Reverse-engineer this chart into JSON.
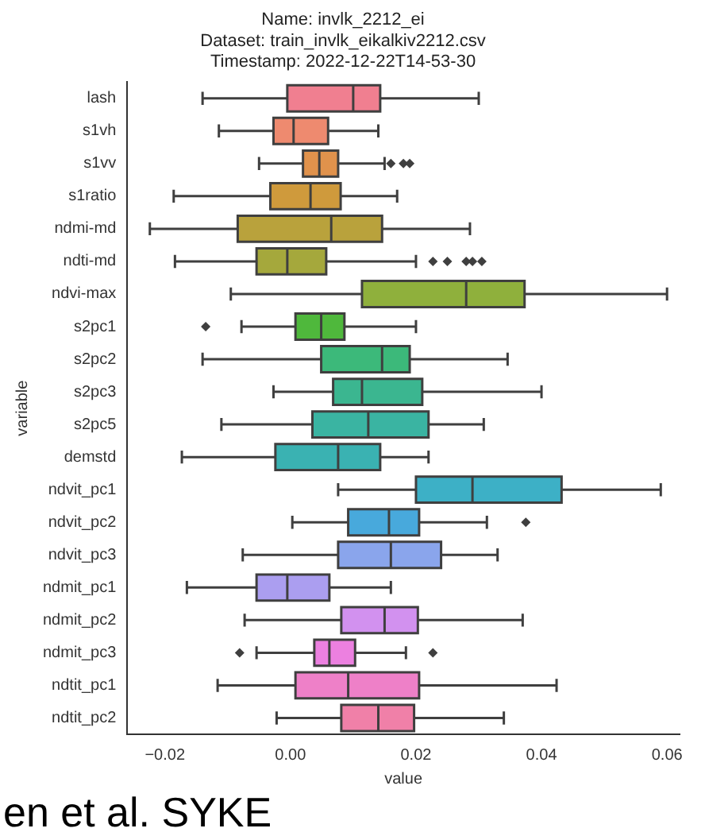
{
  "chart_data": {
    "type": "box",
    "title": "Name: invlk_2212_ei\nDataset: train_invlk_eikalkiv2212.csv\nTimestamp: 2022-12-22T14-53-30",
    "xlabel": "value",
    "ylabel": "variable",
    "orientation": "horizontal",
    "categories": [
      "lash",
      "s1vh",
      "s1vv",
      "s1ratio",
      "ndmi-md",
      "ndti-md",
      "ndvi-max",
      "s2pc1",
      "s2pc2",
      "s2pc3",
      "s2pc5",
      "demstd",
      "ndvit_pc1",
      "ndvit_pc2",
      "ndvit_pc3",
      "ndmit_pc1",
      "ndmit_pc2",
      "ndmit_pc3",
      "ndtit_pc1",
      "ndtit_pc2"
    ],
    "colors": [
      "#f07f90",
      "#ee8a6f",
      "#e0924c",
      "#cf9a3c",
      "#b9a23c",
      "#a5a83c",
      "#8fb03c",
      "#4fb83c",
      "#3cb97a",
      "#3bb690",
      "#3ab4a2",
      "#3ab2b2",
      "#3db0c6",
      "#48a9dc",
      "#8aa5ec",
      "#ab9ef0",
      "#d291ef",
      "#ec80e0",
      "#ee80c8",
      "#f080a8"
    ],
    "boxes": [
      {
        "low": -0.014,
        "q1": -0.0005,
        "median": 0.01,
        "q3": 0.0143,
        "high": 0.03
      },
      {
        "low": -0.0114,
        "q1": -0.0027,
        "median": 0.0005,
        "q3": 0.006,
        "high": 0.014
      },
      {
        "low": -0.005,
        "q1": 0.002,
        "median": 0.0046,
        "q3": 0.0076,
        "high": 0.015,
        "outliers": [
          0.016,
          0.018,
          0.019
        ]
      },
      {
        "low": -0.0186,
        "q1": -0.0032,
        "median": 0.0032,
        "q3": 0.008,
        "high": 0.017
      },
      {
        "low": -0.0224,
        "q1": -0.0084,
        "median": 0.0065,
        "q3": 0.0146,
        "high": 0.0286
      },
      {
        "low": -0.0184,
        "q1": -0.0054,
        "median": -0.0005,
        "q3": 0.0057,
        "high": 0.02,
        "outliers": [
          0.0227,
          0.025,
          0.028,
          0.029,
          0.0305
        ]
      },
      {
        "low": -0.0095,
        "q1": 0.0114,
        "median": 0.028,
        "q3": 0.0373,
        "high": 0.06
      },
      {
        "low": -0.0078,
        "q1": 0.0008,
        "median": 0.0049,
        "q3": 0.0086,
        "high": 0.02,
        "outliers": [
          -0.0135
        ]
      },
      {
        "low": -0.014,
        "q1": 0.0049,
        "median": 0.0146,
        "q3": 0.019,
        "high": 0.0346
      },
      {
        "low": -0.0027,
        "q1": 0.0068,
        "median": 0.0114,
        "q3": 0.021,
        "high": 0.04
      },
      {
        "low": -0.011,
        "q1": 0.0035,
        "median": 0.0124,
        "q3": 0.022,
        "high": 0.0308
      },
      {
        "low": -0.0173,
        "q1": -0.0024,
        "median": 0.0076,
        "q3": 0.0143,
        "high": 0.022
      },
      {
        "low": 0.0076,
        "q1": 0.02,
        "median": 0.029,
        "q3": 0.0432,
        "high": 0.059
      },
      {
        "low": 0.0003,
        "q1": 0.0092,
        "median": 0.0157,
        "q3": 0.0205,
        "high": 0.0313,
        "outliers": [
          0.0375
        ]
      },
      {
        "low": -0.0076,
        "q1": 0.0076,
        "median": 0.016,
        "q3": 0.024,
        "high": 0.033
      },
      {
        "low": -0.0165,
        "q1": -0.0054,
        "median": -0.0005,
        "q3": 0.0062,
        "high": 0.016
      },
      {
        "low": -0.0073,
        "q1": 0.0081,
        "median": 0.015,
        "q3": 0.0203,
        "high": 0.037
      },
      {
        "low": -0.0054,
        "q1": 0.0038,
        "median": 0.0062,
        "q3": 0.0103,
        "high": 0.0184,
        "outliers": [
          -0.0081,
          0.0227
        ]
      },
      {
        "low": -0.0116,
        "q1": 0.0008,
        "median": 0.0092,
        "q3": 0.0205,
        "high": 0.0424
      },
      {
        "low": -0.0022,
        "q1": 0.0081,
        "median": 0.014,
        "q3": 0.0197,
        "high": 0.034
      }
    ],
    "xlim": [
      -0.026,
      0.062
    ],
    "xticks": [
      {
        "value": -0.02,
        "label": "−0.02"
      },
      {
        "value": 0,
        "label": "0.00"
      },
      {
        "value": 0.02,
        "label": "0.02"
      },
      {
        "value": 0.04,
        "label": "0.04"
      },
      {
        "value": 0.06,
        "label": "0.06"
      }
    ],
    "grid": false,
    "legend": false,
    "annotations": [
      "en et al. SYKE"
    ]
  }
}
